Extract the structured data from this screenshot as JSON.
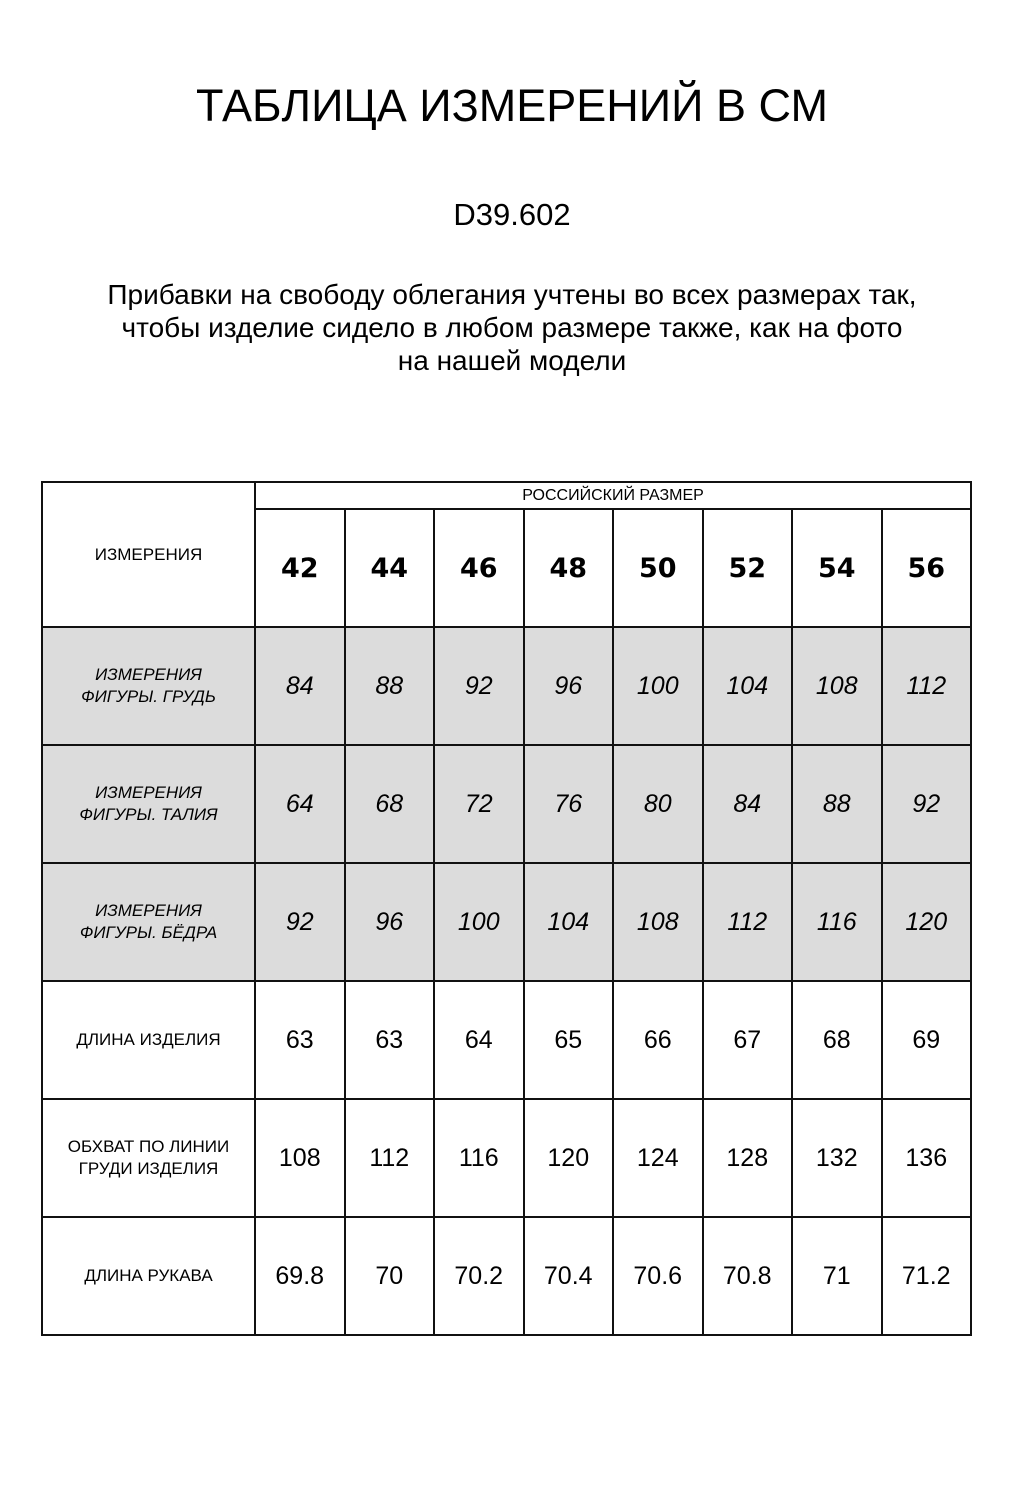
{
  "title": "ТАБЛИЦА ИЗМЕРЕНИЙ В СМ",
  "article": "D39.602",
  "note_lines": [
    "Прибавки на свободу облегания учтены во всех размерах так,",
    "чтобы изделие сидело в любом размере также, как на фото",
    "на нашей модели"
  ],
  "table": {
    "corner_label": "ИЗМЕРЕНИЯ",
    "group_label": "РОССИЙСКИЙ РАЗМЕР",
    "sizes": [
      "42",
      "44",
      "46",
      "48",
      "50",
      "52",
      "54",
      "56"
    ],
    "shade_color": "#dcdcdc",
    "rows": [
      {
        "label": "ИЗМЕРЕНИЯ ФИГУРЫ. ГРУДЬ",
        "shaded": true,
        "values": [
          "84",
          "88",
          "92",
          "96",
          "100",
          "104",
          "108",
          "112"
        ]
      },
      {
        "label": "ИЗМЕРЕНИЯ ФИГУРЫ. ТАЛИЯ",
        "shaded": true,
        "values": [
          "64",
          "68",
          "72",
          "76",
          "80",
          "84",
          "88",
          "92"
        ]
      },
      {
        "label": "ИЗМЕРЕНИЯ ФИГУРЫ. БЁДРА",
        "shaded": true,
        "values": [
          "92",
          "96",
          "100",
          "104",
          "108",
          "112",
          "116",
          "120"
        ]
      },
      {
        "label": "ДЛИНА ИЗДЕЛИЯ",
        "shaded": false,
        "values": [
          "63",
          "63",
          "64",
          "65",
          "66",
          "67",
          "68",
          "69"
        ]
      },
      {
        "label": "ОБХВАТ ПО ЛИНИИ ГРУДИ ИЗДЕЛИЯ",
        "shaded": false,
        "values": [
          "108",
          "112",
          "116",
          "120",
          "124",
          "128",
          "132",
          "136"
        ]
      },
      {
        "label": "ДЛИНА РУКАВА",
        "shaded": false,
        "values": [
          "69.8",
          "70",
          "70.2",
          "70.4",
          "70.6",
          "70.8",
          "71",
          "71.2"
        ]
      }
    ]
  }
}
